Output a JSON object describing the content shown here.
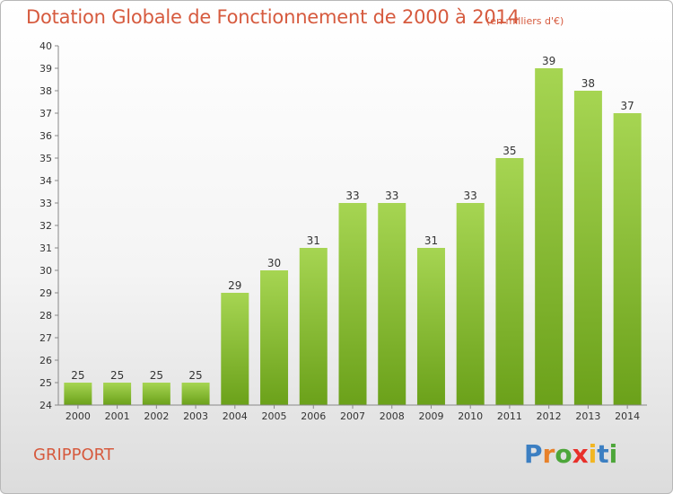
{
  "chart_data": {
    "type": "bar",
    "title": "Dotation Globale de Fonctionnement de 2000 à 2014",
    "subtitle": "(en milliers d'€)",
    "categories": [
      "2000",
      "2001",
      "2002",
      "2003",
      "2004",
      "2005",
      "2006",
      "2007",
      "2008",
      "2009",
      "2010",
      "2011",
      "2012",
      "2013",
      "2014"
    ],
    "values": [
      25,
      25,
      25,
      25,
      29,
      30,
      31,
      33,
      33,
      31,
      33,
      35,
      39,
      38,
      37
    ],
    "ylim": [
      24,
      40
    ],
    "yticks": [
      24,
      25,
      26,
      27,
      28,
      29,
      30,
      31,
      32,
      33,
      34,
      35,
      36,
      37,
      38,
      39,
      40
    ],
    "grid": false,
    "legend": "none",
    "bar_color_top": "#a6d552",
    "bar_color_bottom": "#6ba11a",
    "title_color": "#d65a3e"
  },
  "commune": "GRIPPORT",
  "logo": {
    "text": "Proxiti",
    "letter_colors": [
      "#3c7fc2",
      "#e8812a",
      "#4da63a",
      "#e8302a",
      "#f2b622",
      "#3c7fc2",
      "#4da63a"
    ]
  }
}
